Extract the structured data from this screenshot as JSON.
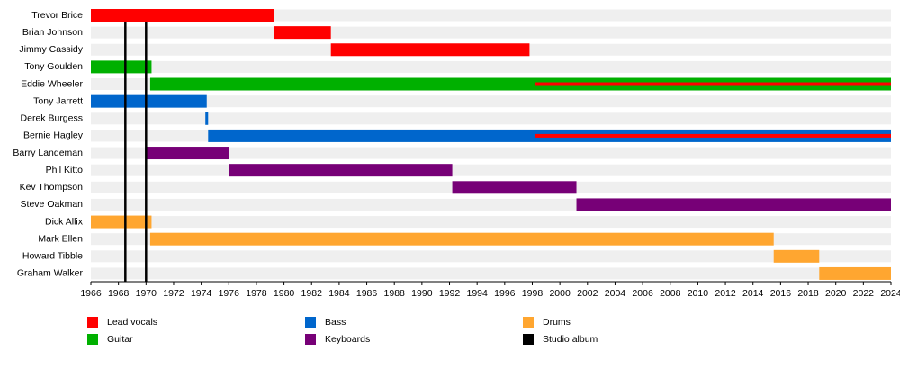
{
  "chart_data": {
    "type": "timeline",
    "categories": [
      "Trevor Brice",
      "Brian Johnson",
      "Jimmy Cassidy",
      "Tony Goulden",
      "Eddie Wheeler",
      "Tony Jarrett",
      "Derek Burgess",
      "Bernie Hagley",
      "Barry Landeman",
      "Phil Kitto",
      "Kev Thompson",
      "Steve Oakman",
      "Dick Allix",
      "Mark Ellen",
      "Howard Tibble",
      "Graham Walker"
    ],
    "series": [
      {
        "name": "Lead vocals",
        "color": "#ff0000",
        "values": [
          [
            1966,
            1979.3
          ],
          [
            1979.3,
            1983.4
          ],
          [
            1983.4,
            1997.8
          ],
          null,
          [
            1998.2,
            2024
          ],
          null,
          null,
          [
            1998.2,
            2024
          ],
          null,
          null,
          null,
          null,
          null,
          null,
          null,
          null
        ]
      },
      {
        "name": "Guitar",
        "color": "#00b000",
        "values": [
          null,
          null,
          null,
          [
            1966,
            1970.4
          ],
          [
            1970.3,
            2024
          ],
          null,
          null,
          null,
          null,
          null,
          null,
          null,
          null,
          null,
          null,
          null
        ]
      },
      {
        "name": "Bass",
        "color": "#0066cc",
        "values": [
          null,
          null,
          null,
          null,
          null,
          [
            1966,
            1974.4
          ],
          [
            1974.3,
            1974.5
          ],
          [
            1974.5,
            2024
          ],
          null,
          null,
          null,
          null,
          null,
          null,
          null,
          null
        ]
      },
      {
        "name": "Keyboards",
        "color": "#770077",
        "values": [
          null,
          null,
          null,
          null,
          null,
          null,
          null,
          null,
          [
            1970,
            1976
          ],
          [
            1976,
            1992.2
          ],
          [
            1992.2,
            2001.2
          ],
          [
            2001.2,
            2024
          ],
          null,
          null,
          null,
          null
        ]
      },
      {
        "name": "Drums",
        "color": "#ffa630",
        "values": [
          null,
          null,
          null,
          null,
          null,
          null,
          null,
          null,
          null,
          null,
          null,
          null,
          [
            1966,
            1970.4
          ],
          [
            1970.3,
            2015.5
          ],
          [
            2015.5,
            2018.8
          ],
          [
            2018.8,
            2024
          ]
        ]
      },
      {
        "name": "Studio album",
        "color": "#000000",
        "kind": "line",
        "x": [
          1968.5,
          1970
        ]
      }
    ],
    "xlim": [
      1966,
      2024
    ],
    "xticks": [
      1966,
      1968,
      1970,
      1972,
      1974,
      1976,
      1978,
      1980,
      1982,
      1984,
      1986,
      1988,
      1990,
      1992,
      1994,
      1996,
      1998,
      2000,
      2002,
      2004,
      2006,
      2008,
      2010,
      2012,
      2014,
      2016,
      2018,
      2020,
      2022,
      2024
    ],
    "overlay_series": "Lead vocals",
    "legend": "bottom"
  }
}
